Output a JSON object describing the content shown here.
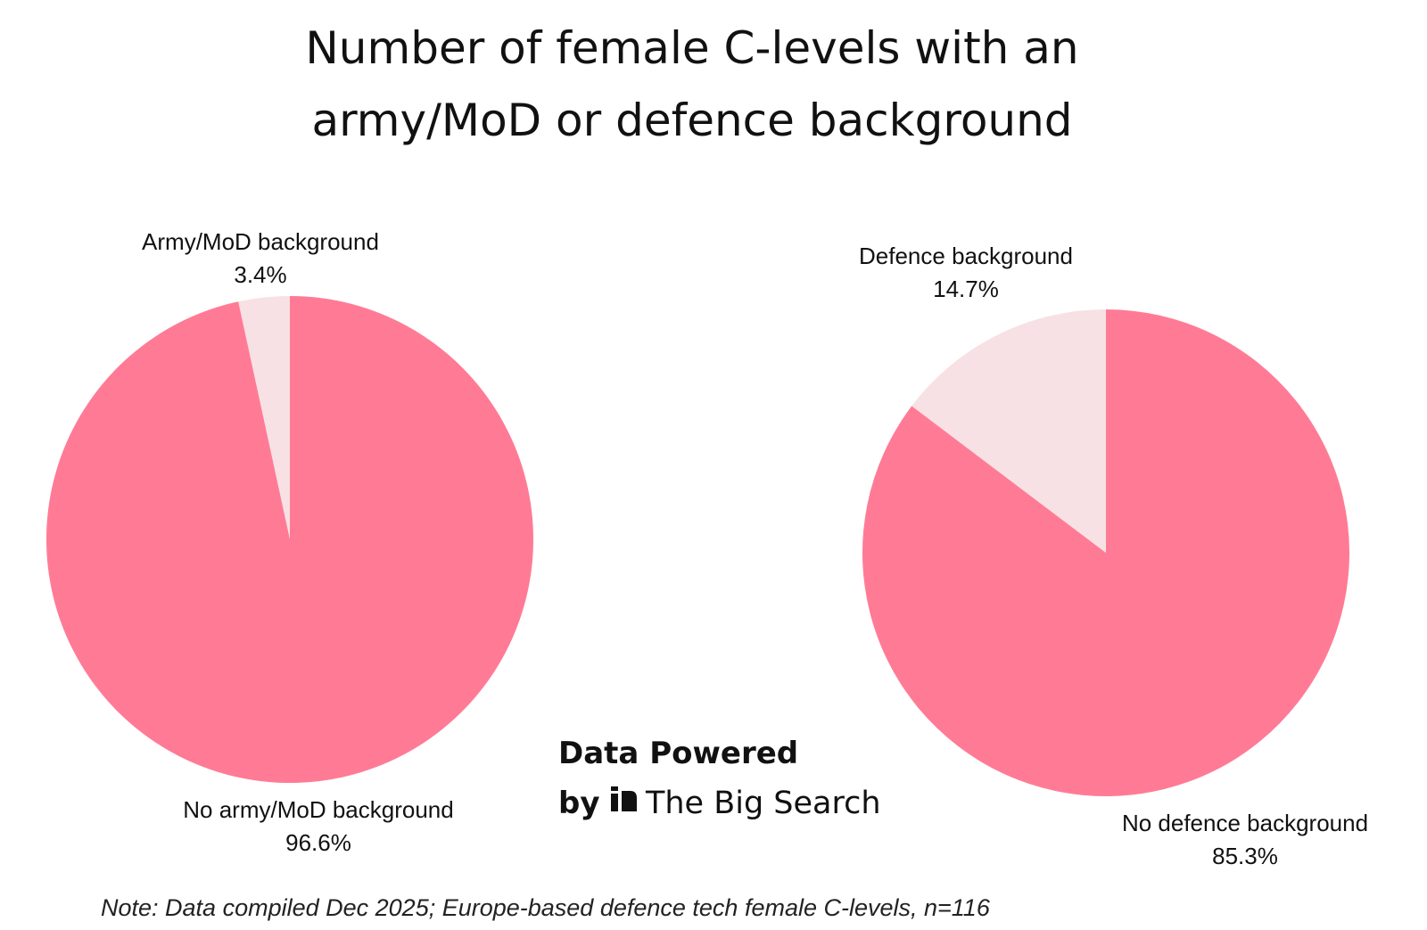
{
  "title": {
    "line1": "Number of female C-levels with an",
    "line2": "army/MoD or defence background"
  },
  "colors": {
    "main": "#FF7B95",
    "minor": "#F7E1E4",
    "text": "#111111"
  },
  "chart_data": [
    {
      "type": "pie",
      "slices": [
        {
          "name": "Army/MoD background",
          "value": 3.4,
          "label": "3.4%",
          "color": "#F7E1E4"
        },
        {
          "name": "No army/MoD background",
          "value": 96.6,
          "label": "96.6%",
          "color": "#FF7B95"
        }
      ]
    },
    {
      "type": "pie",
      "slices": [
        {
          "name": "Defence background",
          "value": 14.7,
          "label": "14.7%",
          "color": "#F7E1E4"
        },
        {
          "name": "No defence background",
          "value": 85.3,
          "label": "85.3%",
          "color": "#FF7B95"
        }
      ]
    }
  ],
  "branding": {
    "line1": "Data Powered",
    "by": "by",
    "logo_icon": "the-big-search-logo",
    "name": "The Big Search"
  },
  "note": "Note: Data compiled Dec 2025; Europe-based defence tech female C-levels, n=116"
}
